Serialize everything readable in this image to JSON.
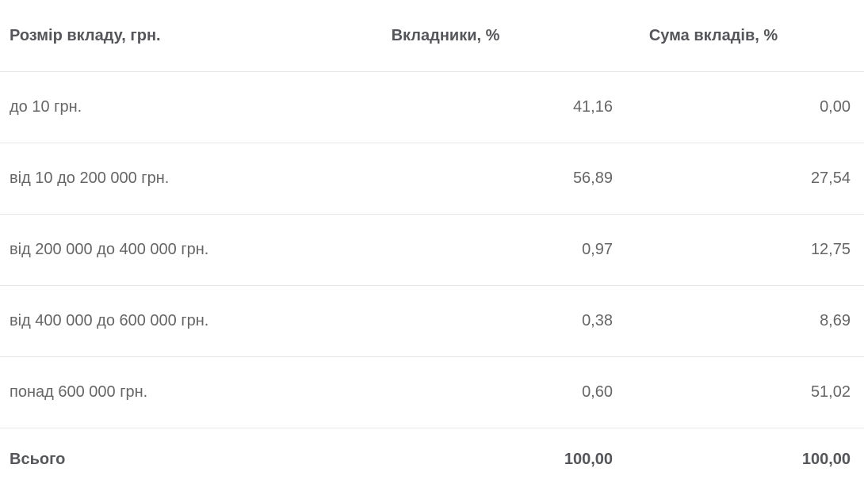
{
  "colors": {
    "background": "#ffffff",
    "header_text": "#55565a",
    "body_text": "#666666",
    "divider": "#e7e7e7"
  },
  "chart_data": {
    "type": "table",
    "columns": [
      "Розмір вкладу, грн.",
      "Вкладники, %",
      "Сума вкладів, %"
    ],
    "rows": [
      [
        "до 10 грн.",
        "41,16",
        "0,00"
      ],
      [
        "від 10 до 200 000 грн.",
        "56,89",
        "27,54"
      ],
      [
        "від 200 000 до 400 000 грн.",
        "0,97",
        "12,75"
      ],
      [
        "від 400 000 до 600 000 грн.",
        "0,38",
        "8,69"
      ],
      [
        "понад 600 000 грн.",
        "0,60",
        "51,02"
      ]
    ],
    "total_row": [
      "Всього",
      "100,00",
      "100,00"
    ],
    "numeric": {
      "depositors_pct": [
        41.16,
        56.89,
        0.97,
        0.38,
        0.6
      ],
      "deposit_sum_pct": [
        0.0,
        27.54,
        12.75,
        8.69,
        51.02
      ],
      "totals": {
        "depositors_pct": 100.0,
        "deposit_sum_pct": 100.0
      }
    }
  }
}
